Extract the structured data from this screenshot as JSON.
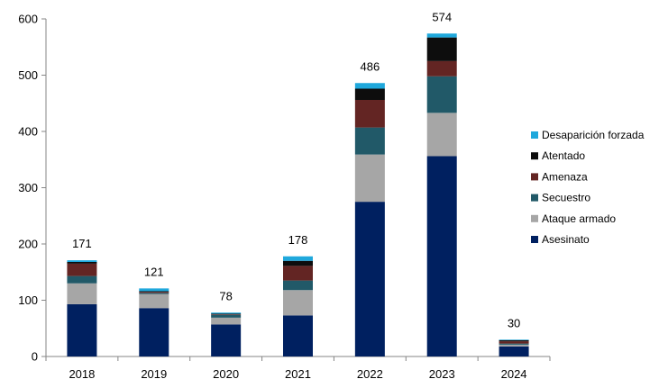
{
  "chart_data": {
    "type": "bar",
    "stacked": true,
    "categories": [
      "2018",
      "2019",
      "2020",
      "2021",
      "2022",
      "2023",
      "2024"
    ],
    "series": [
      {
        "name": "Asesinato",
        "color": "#002060",
        "values": [
          93,
          86,
          57,
          73,
          275,
          356,
          18
        ]
      },
      {
        "name": "Ataque armado",
        "color": "#A6A6A6",
        "values": [
          37,
          25,
          12,
          45,
          84,
          77,
          3
        ]
      },
      {
        "name": "Secuestro",
        "color": "#215968",
        "values": [
          13,
          2,
          5,
          17,
          48,
          65,
          2
        ]
      },
      {
        "name": "Amenaza",
        "color": "#632523",
        "values": [
          22,
          2,
          1,
          26,
          49,
          27,
          4
        ]
      },
      {
        "name": "Atentado",
        "color": "#0D0D0D",
        "values": [
          3,
          1,
          1,
          9,
          20,
          42,
          2
        ]
      },
      {
        "name": "Desaparición forzada",
        "color": "#1FA8DC",
        "values": [
          3,
          5,
          2,
          8,
          10,
          7,
          1
        ]
      }
    ],
    "totals": [
      "171",
      "121",
      "78",
      "178",
      "486",
      "574",
      "30"
    ],
    "ylim": [
      0,
      600
    ],
    "yticks": [
      "0",
      "100",
      "200",
      "300",
      "400",
      "500",
      "600"
    ],
    "grid": false,
    "legend_position": "right",
    "legend_order": [
      "Desaparición forzada",
      "Atentado",
      "Amenaza",
      "Secuestro",
      "Ataque armado",
      "Asesinato"
    ]
  }
}
